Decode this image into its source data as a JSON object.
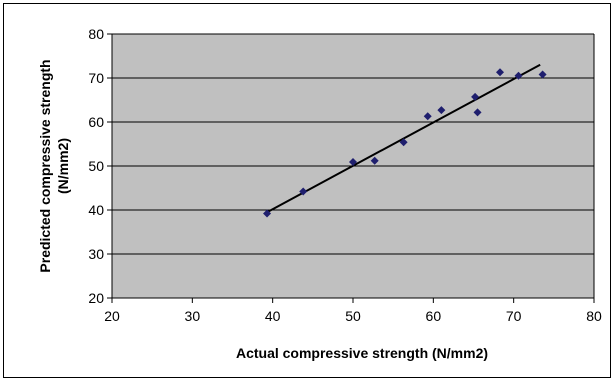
{
  "chart_data": {
    "type": "scatter",
    "xlabel": "Actual compressive strength (N/mm2)",
    "ylabel_lines": [
      "Predicted compressive strength",
      "(N/mm2)"
    ],
    "xlim": [
      20,
      80
    ],
    "ylim": [
      20,
      80
    ],
    "xticks": [
      20,
      30,
      40,
      50,
      60,
      70,
      80
    ],
    "yticks": [
      20,
      30,
      40,
      50,
      60,
      70,
      80
    ],
    "grid": "horizontal",
    "legend": "none",
    "points": [
      {
        "x": 39.3,
        "y": 39.2
      },
      {
        "x": 43.8,
        "y": 44.2
      },
      {
        "x": 50.0,
        "y": 50.9
      },
      {
        "x": 52.7,
        "y": 51.2
      },
      {
        "x": 56.3,
        "y": 55.4
      },
      {
        "x": 59.3,
        "y": 61.3
      },
      {
        "x": 61.0,
        "y": 62.7
      },
      {
        "x": 65.2,
        "y": 65.7
      },
      {
        "x": 65.5,
        "y": 62.2
      },
      {
        "x": 68.3,
        "y": 71.3
      },
      {
        "x": 70.6,
        "y": 70.5
      },
      {
        "x": 73.6,
        "y": 70.8
      }
    ],
    "trendline": [
      {
        "x": 39.3,
        "y": 39.5
      },
      {
        "x": 73.3,
        "y": 73.0
      }
    ],
    "colors": {
      "plot_background": "#c0c0c0",
      "marker": "#1f1f6e",
      "trendline": "#000000",
      "gridline": "#000000"
    }
  }
}
